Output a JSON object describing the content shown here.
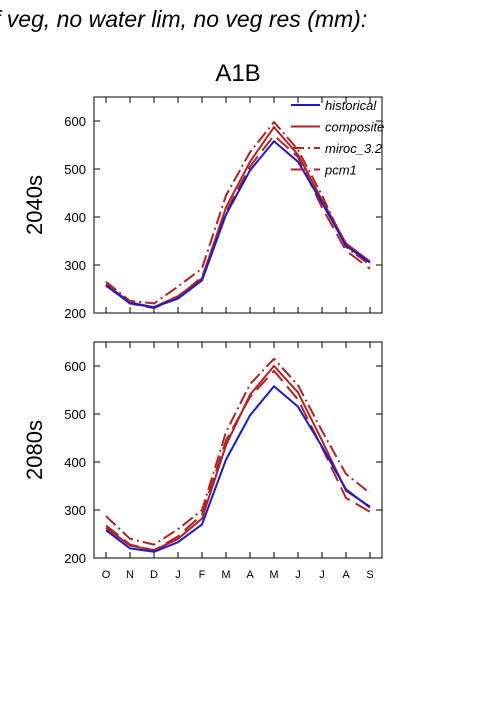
{
  "figure": {
    "title": "f veg, no water lim, no veg res (mm):",
    "scenario": "A1B",
    "months": [
      "O",
      "N",
      "D",
      "J",
      "F",
      "M",
      "A",
      "M",
      "J",
      "J",
      "A",
      "S"
    ]
  },
  "styles": {
    "historical": {
      "color": "#1a1acc",
      "dash": "solid"
    },
    "composite": {
      "color": "#b22222",
      "dash": "solid"
    },
    "miroc_3.2": {
      "color": "#b22222",
      "dash": "dashdot"
    },
    "pcm1": {
      "color": "#b22222",
      "dash": "longdash"
    }
  },
  "chart_data": [
    {
      "type": "line",
      "row_label": "2040s",
      "categories": [
        "O",
        "N",
        "D",
        "J",
        "F",
        "M",
        "A",
        "M",
        "J",
        "J",
        "A",
        "S"
      ],
      "ylim": [
        200,
        650
      ],
      "yticks": [
        200,
        300,
        400,
        500,
        600
      ],
      "series": [
        {
          "name": "historical",
          "values": [
            257,
            220,
            212,
            230,
            268,
            405,
            497,
            558,
            515,
            430,
            340,
            305
          ]
        },
        {
          "name": "composite",
          "values": [
            260,
            222,
            212,
            235,
            272,
            420,
            515,
            587,
            530,
            435,
            345,
            307
          ]
        },
        {
          "name": "miroc_3.2",
          "values": [
            265,
            225,
            220,
            255,
            293,
            445,
            535,
            598,
            540,
            445,
            338,
            300
          ]
        },
        {
          "name": "pcm1",
          "values": [
            258,
            220,
            210,
            233,
            275,
            410,
            505,
            570,
            525,
            420,
            330,
            292
          ]
        }
      ],
      "legend": {
        "position": "top-right",
        "entries": [
          "historical",
          "composite",
          "miroc_3.2",
          "pcm1"
        ]
      }
    },
    {
      "type": "line",
      "row_label": "2080s",
      "categories": [
        "O",
        "N",
        "D",
        "J",
        "F",
        "M",
        "A",
        "M",
        "J",
        "J",
        "A",
        "S"
      ],
      "ylim": [
        200,
        650
      ],
      "yticks": [
        200,
        300,
        400,
        500,
        600
      ],
      "series": [
        {
          "name": "historical",
          "values": [
            258,
            220,
            213,
            233,
            270,
            405,
            497,
            558,
            515,
            432,
            343,
            305
          ]
        },
        {
          "name": "composite",
          "values": [
            263,
            226,
            216,
            240,
            282,
            435,
            540,
            600,
            545,
            445,
            340,
            307
          ]
        },
        {
          "name": "miroc_3.2",
          "values": [
            287,
            240,
            228,
            260,
            300,
            462,
            562,
            615,
            560,
            465,
            375,
            335
          ]
        },
        {
          "name": "pcm1",
          "values": [
            268,
            228,
            216,
            245,
            290,
            445,
            535,
            590,
            530,
            430,
            325,
            296
          ]
        }
      ]
    }
  ]
}
